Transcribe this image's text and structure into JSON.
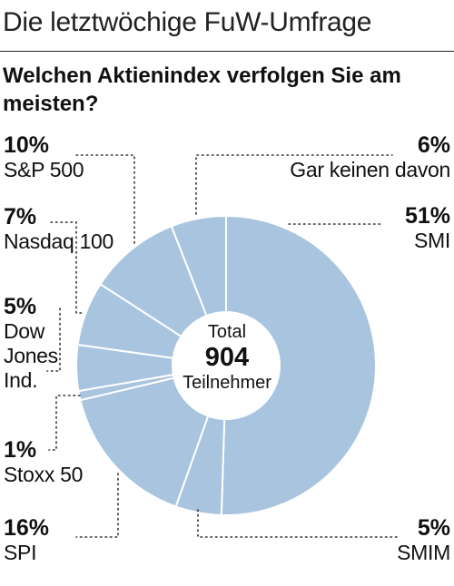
{
  "header": {
    "title": "Die letztwöchige FuW-Umfrage"
  },
  "question": "Welchen Aktienindex verfolgen Sie am meisten?",
  "center": {
    "top": "Total",
    "value": "904",
    "bottom": "Teilnehmer"
  },
  "colors": {
    "slice": "#a8c4de",
    "separator": "#ffffff",
    "leader": "#333333"
  },
  "chart_data": {
    "type": "pie",
    "title": "Welchen Aktienindex verfolgen Sie am meisten?",
    "total": 904,
    "slices": [
      {
        "name": "SMI",
        "pct": "51%",
        "value": 51
      },
      {
        "name": "SMIM",
        "pct": "5%",
        "value": 5
      },
      {
        "name": "SPI",
        "pct": "16%",
        "value": 16
      },
      {
        "name": "Stoxx 50",
        "pct": "1%",
        "value": 1
      },
      {
        "name": "Dow Jones Ind.",
        "pct": "5%",
        "value": 5
      },
      {
        "name": "Nasdaq 100",
        "pct": "7%",
        "value": 7
      },
      {
        "name": "S&P 500",
        "pct": "10%",
        "value": 10
      },
      {
        "name": "Gar keinen davon",
        "pct": "6%",
        "value": 6
      }
    ],
    "labels": {
      "smi": {
        "pct": "51%",
        "name": "SMI"
      },
      "smim": {
        "pct": "5%",
        "name": "SMIM"
      },
      "spi": {
        "pct": "16%",
        "name": "SPI"
      },
      "stoxx": {
        "pct": "1%",
        "name": "Stoxx 50"
      },
      "dow": {
        "pct": "5%",
        "name1": "Dow",
        "name2": "Jones",
        "name3": "Ind."
      },
      "nasdaq": {
        "pct": "7%",
        "name": "Nasdaq 100"
      },
      "sp": {
        "pct": "10%",
        "name": "S&P 500"
      },
      "none": {
        "pct": "6%",
        "name": "Gar keinen davon"
      }
    }
  }
}
